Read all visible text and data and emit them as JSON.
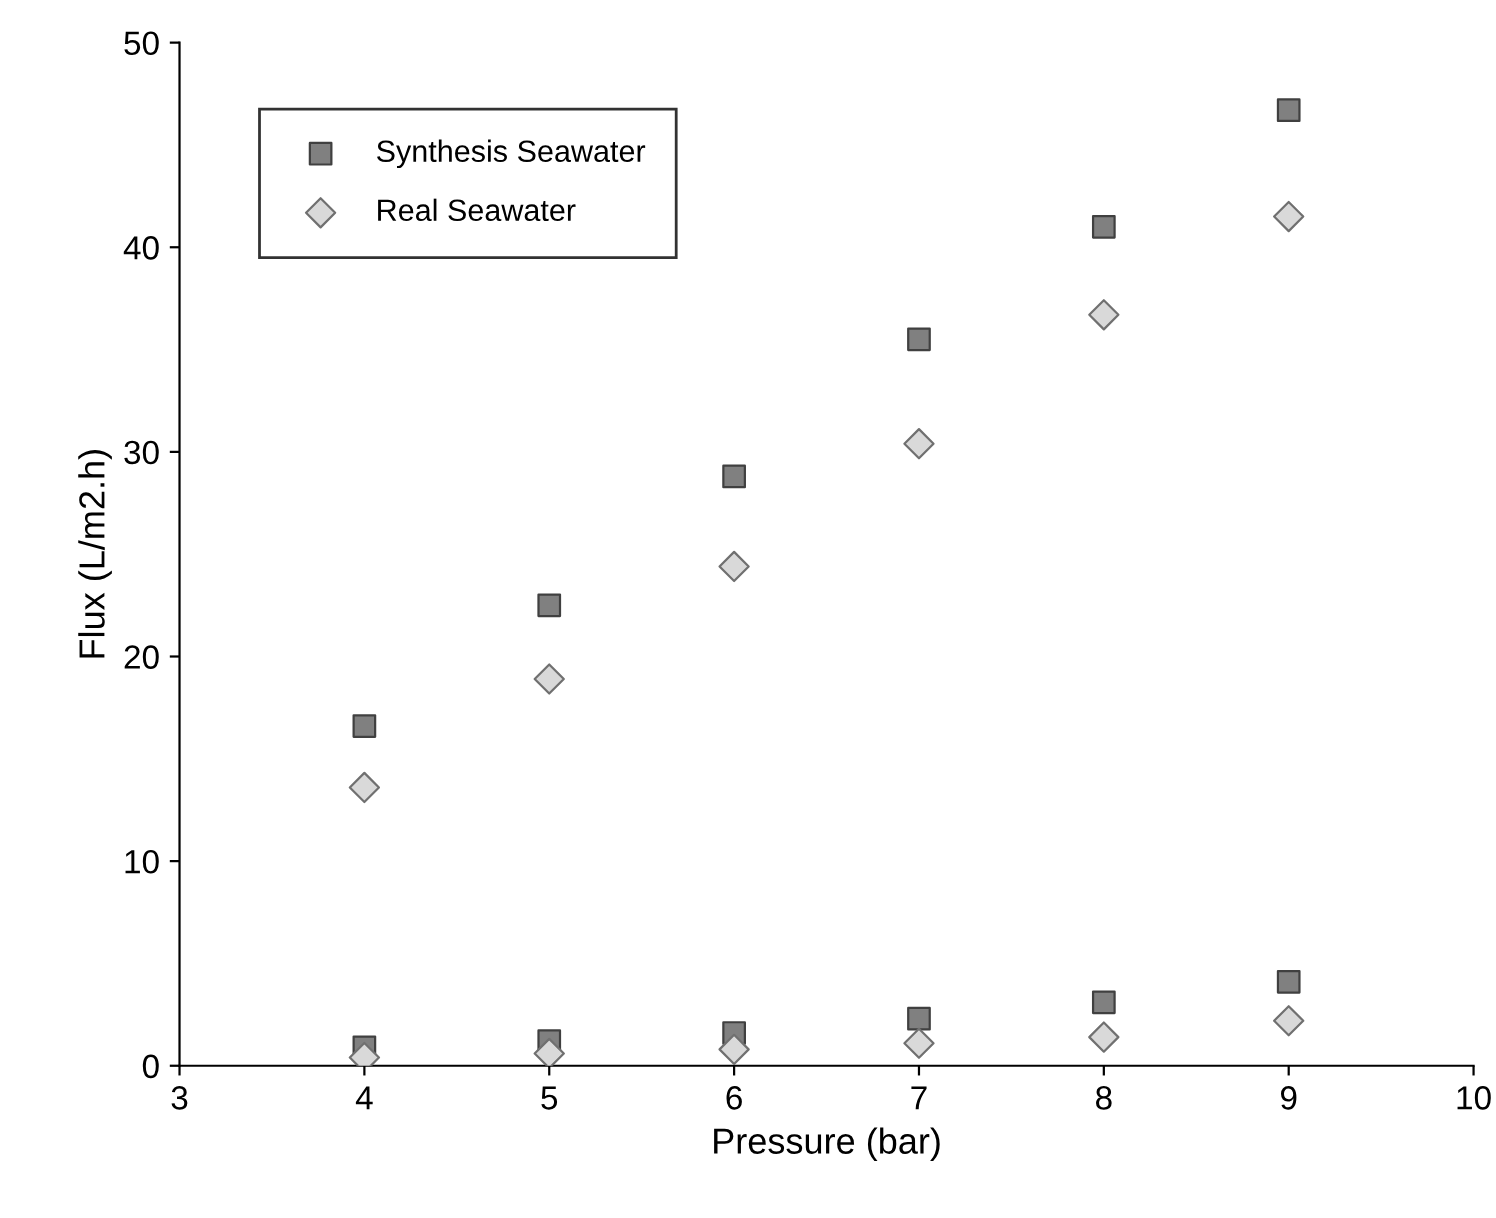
{
  "chart_data": {
    "type": "scatter",
    "xlabel": "Pressure (bar)",
    "ylabel": "Flux (L/m2.h)",
    "xlim": [
      3,
      10
    ],
    "xticks": [
      3,
      4,
      5,
      6,
      7,
      8,
      9,
      10
    ],
    "ylim": [
      0,
      50
    ],
    "yticks": [
      0,
      10,
      20,
      30,
      40,
      50
    ],
    "grid": false,
    "legend": "top left",
    "series": [
      {
        "name": "Synthesis Seawater",
        "color": "#808080",
        "marker": "square",
        "x": [
          4,
          5,
          6,
          7,
          8,
          9
        ],
        "values": [
          16.6,
          22.5,
          28.8,
          35.5,
          41.0,
          46.7
        ]
      },
      {
        "name": "Real Seawater",
        "color": "#d9d9d9",
        "marker": "diamond",
        "x": [
          4,
          5,
          6,
          7,
          8,
          9
        ],
        "values": [
          13.6,
          18.9,
          24.4,
          30.4,
          36.7,
          41.5
        ]
      },
      {
        "color": "#808080",
        "marker": "square",
        "x": [
          4,
          5,
          6,
          7,
          8,
          9
        ],
        "values": [
          0.9,
          1.2,
          1.6,
          2.3,
          3.1,
          4.1
        ]
      },
      {
        "color": "#d9d9d9",
        "marker": "diamond",
        "x": [
          4,
          5,
          6,
          7,
          8,
          9
        ],
        "values": [
          0.4,
          0.6,
          0.8,
          1.1,
          1.4,
          2.2
        ]
      }
    ]
  }
}
